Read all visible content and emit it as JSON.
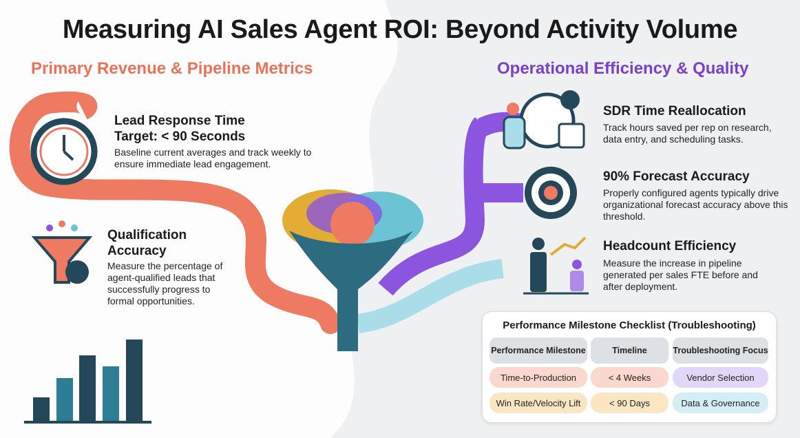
{
  "title": "Measuring AI Sales Agent ROI: Beyond Activity Volume",
  "left": {
    "heading": "Primary Revenue & Pipeline Metrics",
    "items": [
      {
        "title": "Lead Response Time",
        "subtitle": "Target: < 90 Seconds",
        "description": "Baseline current averages and track weekly to ensure immediate lead engagement."
      },
      {
        "title": "Qualification Accuracy",
        "description": "Measure the percentage of agent-qualified leads that successfully progress to formal opportunities."
      }
    ]
  },
  "right": {
    "heading": "Operational Efficiency & Quality",
    "items": [
      {
        "title": "SDR Time Reallocation",
        "description": "Track hours saved per rep on research, data entry, and scheduling tasks."
      },
      {
        "title": "90% Forecast Accuracy",
        "description": "Properly configured agents typically drive organizational forecast accuracy above this threshold."
      },
      {
        "title": "Headcount Efficiency",
        "description": "Measure the increase in pipeline generated per sales FTE before and after deployment."
      }
    ]
  },
  "table": {
    "title": "Performance Milestone Checklist (Troubleshooting)",
    "headers": [
      "Performance Milestone",
      "Timeline",
      "Troubleshooting Focus"
    ],
    "rows": [
      [
        "Time-to-Production",
        "< 4 Weeks",
        "Vendor Selection"
      ],
      [
        "Win Rate/Velocity Lift",
        "< 90 Days",
        "Data & Governance"
      ]
    ]
  }
}
